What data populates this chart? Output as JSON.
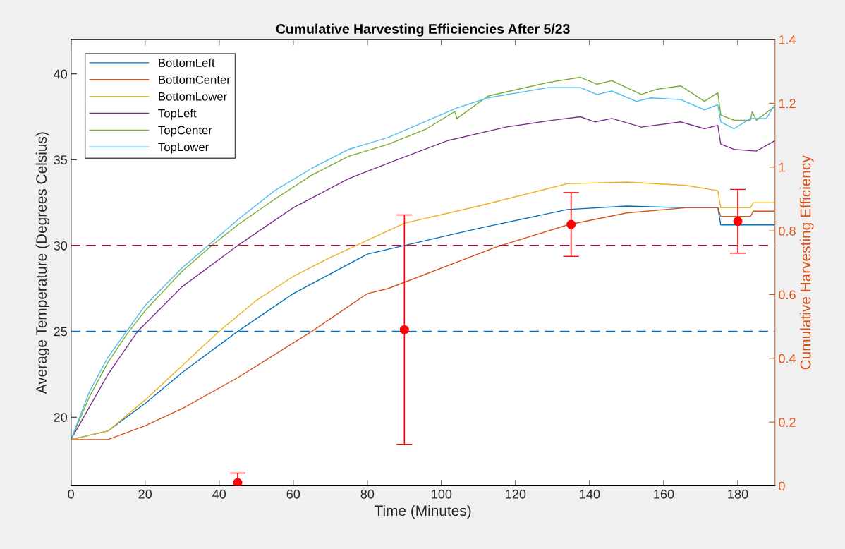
{
  "chart_data": {
    "type": "line",
    "title": "Cumulative Harvesting Efficiencies After 5/23",
    "xlabel": "Time (Minutes)",
    "ylabel": "Average Temperature (Degrees Celsius)",
    "y2label": "Cumulative Harvesting Efficiency",
    "xlim": [
      0,
      190
    ],
    "xticks": [
      0,
      20,
      40,
      60,
      80,
      100,
      120,
      140,
      160,
      180
    ],
    "ylim": [
      16,
      42
    ],
    "yticks": [
      20,
      25,
      30,
      35,
      40
    ],
    "y2lim": [
      0,
      1.4
    ],
    "y2ticks": [
      0,
      0.2,
      0.4,
      0.6,
      0.8,
      1,
      1.2,
      1.4
    ],
    "legend": "top left",
    "grid": false,
    "ref_lines": [
      {
        "axis": "y",
        "value": 30,
        "color": "#a2142f",
        "line_style": "dashed"
      },
      {
        "axis": "y",
        "value": 25,
        "color": "#0072bd",
        "line_style": "dashed"
      }
    ],
    "series": [
      {
        "name": "BottomLeft",
        "color": "#0072bd",
        "x": [
          0,
          10,
          20,
          30,
          45,
          60,
          80,
          90,
          110,
          134,
          150,
          166,
          174.6,
          175.4,
          190
        ],
        "values": [
          18.7,
          19.2,
          20.8,
          22.6,
          25,
          27.2,
          29.5,
          30,
          31.0,
          32.1,
          32.3,
          32.2,
          32.2,
          31.2,
          31.2
        ]
      },
      {
        "name": "BottomCenter",
        "color": "#d95319",
        "x": [
          0,
          10,
          20,
          30,
          45,
          65,
          80,
          85.7,
          114.6,
          134,
          150,
          166,
          174.6,
          175.4,
          183.4,
          184.2,
          190
        ],
        "values": [
          18.7,
          18.7,
          19.5,
          20.5,
          22.3,
          25,
          27.2,
          27.5,
          29.9,
          31.2,
          31.9,
          32.2,
          32.2,
          31.7,
          31.7,
          32.0,
          32.0
        ]
      },
      {
        "name": "BottomLower",
        "color": "#edb120",
        "x": [
          0,
          10,
          20,
          30,
          40,
          50,
          60,
          70,
          77,
          90,
          110,
          134,
          150,
          166,
          174.6,
          175.4,
          183.4,
          184.2,
          190
        ],
        "values": [
          18.7,
          19.2,
          21,
          23,
          25,
          26.8,
          28.2,
          29.3,
          30,
          31.3,
          32.3,
          33.6,
          33.7,
          33.5,
          33.2,
          32.2,
          32.2,
          32.5,
          32.5
        ]
      },
      {
        "name": "TopLeft",
        "color": "#7e2f8e",
        "x": [
          0,
          10,
          18,
          30,
          45,
          60,
          75,
          85.7,
          101.5,
          117.4,
          130,
          137.5,
          141.5,
          146,
          154,
          164.6,
          171,
          174.6,
          175.4,
          179,
          185,
          190
        ],
        "values": [
          18.7,
          22.5,
          25,
          27.6,
          30,
          32.2,
          33.9,
          34.8,
          36.1,
          36.9,
          37.3,
          37.5,
          37.2,
          37.4,
          36.9,
          37.2,
          36.8,
          37.0,
          35.9,
          35.6,
          35.5,
          36.1
        ]
      },
      {
        "name": "TopCenter",
        "color": "#77ac30",
        "x": [
          0,
          5,
          10,
          15,
          20,
          30,
          38,
          45,
          55,
          65,
          75,
          85.7,
          96,
          103.6,
          104.2,
          112.5,
          128.8,
          137.5,
          142,
          146,
          154,
          158,
          164.6,
          171,
          174.6,
          175.4,
          179,
          183.4,
          183.9,
          185,
          190
        ],
        "values": [
          18.7,
          21.2,
          23.2,
          24.8,
          26.2,
          28.5,
          30,
          31.2,
          32.7,
          34.1,
          35.2,
          35.9,
          36.8,
          37.8,
          37.4,
          38.7,
          39.5,
          39.8,
          39.4,
          39.6,
          38.8,
          39.1,
          39.3,
          38.4,
          38.9,
          37.6,
          37.3,
          37.3,
          37.8,
          37.3,
          38.1
        ]
      },
      {
        "name": "TopLower",
        "color": "#4dbeee",
        "x": [
          0,
          5,
          10,
          15,
          20,
          30,
          37,
          45,
          55,
          65,
          75,
          85.7,
          104,
          112.5,
          128.8,
          137.5,
          142,
          146,
          152.6,
          156.6,
          164.6,
          171,
          174.6,
          175.4,
          179,
          183.4,
          187.7,
          190
        ],
        "values": [
          18.7,
          21.5,
          23.5,
          25,
          26.5,
          28.7,
          30,
          31.5,
          33.2,
          34.5,
          35.6,
          36.3,
          38.0,
          38.6,
          39.2,
          39.2,
          38.8,
          39.0,
          38.4,
          38.6,
          38.5,
          37.9,
          38.2,
          37.2,
          36.8,
          37.4,
          37.4,
          38.2
        ]
      },
      {
        "type": "scatter",
        "axis": "y2",
        "color": "#ff0000",
        "marker": "circle",
        "x": [
          45,
          90,
          135,
          180
        ],
        "values": [
          0.01,
          0.49,
          0.82,
          0.83
        ],
        "errors": [
          [
            0,
            0.04
          ],
          0.36,
          0.1,
          0.1
        ]
      }
    ]
  }
}
